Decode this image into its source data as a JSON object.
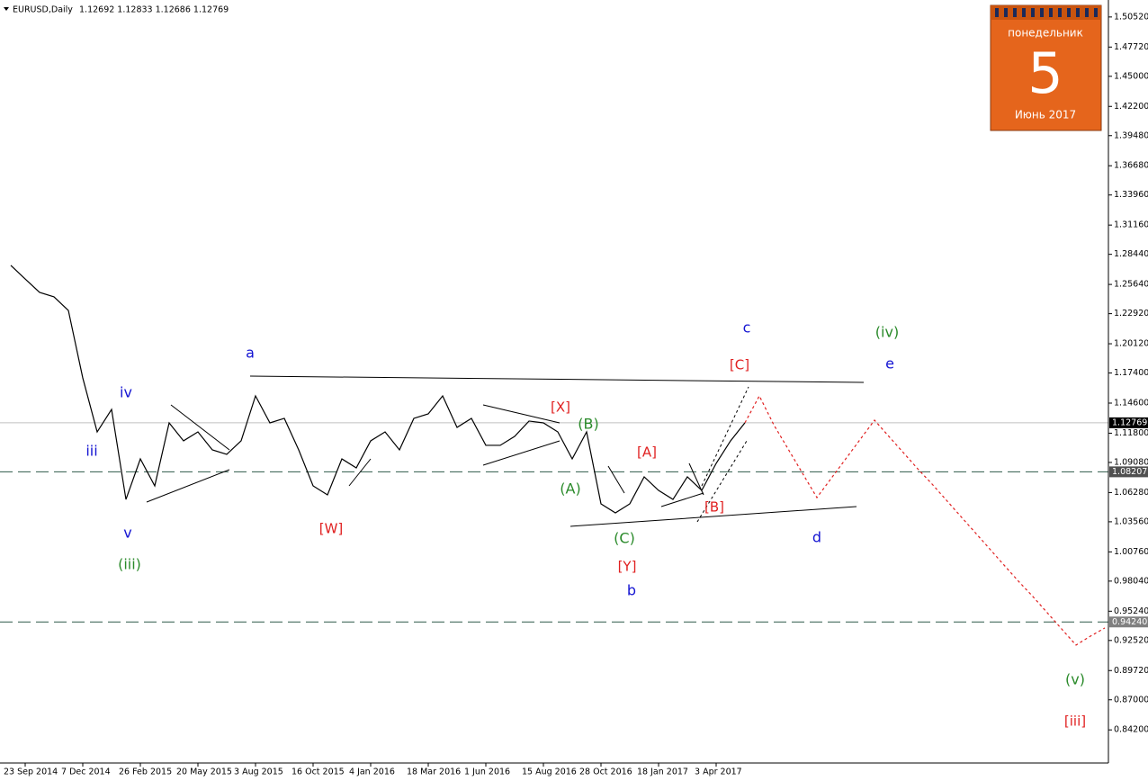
{
  "chart_data": {
    "type": "line",
    "header": {
      "symbol": "EURUSD,Daily",
      "quote": "1.12692 1.12833 1.12686 1.12769"
    },
    "calendar": {
      "weekday": "понедельник",
      "day": "5",
      "month_year": "Июнь 2017"
    },
    "categories": [
      null,
      "23 Sep 2014",
      null,
      null,
      null,
      "7 Dec 2014",
      null,
      null,
      null,
      "26 Feb 2015",
      null,
      null,
      null,
      "20 May 2015",
      null,
      null,
      null,
      "3 Aug 2015",
      null,
      null,
      null,
      "16 Oct 2015",
      null,
      null,
      null,
      "4 Jan 2016",
      null,
      null,
      null,
      "18 Mar 2016",
      null,
      null,
      null,
      "1 Jun 2016",
      null,
      null,
      null,
      "15 Aug 2016",
      null,
      null,
      null,
      "28 Oct 2016",
      null,
      null,
      null,
      "18 Jan 2017",
      null,
      null,
      null,
      "3 Apr 2017",
      null,
      null,
      null,
      null,
      null,
      null,
      null,
      null,
      null,
      null,
      null,
      null,
      null,
      null,
      null,
      null,
      null,
      null,
      null,
      null,
      null,
      null,
      null,
      null,
      null,
      null,
      null
    ],
    "series": [
      {
        "color": "#000000",
        "style": "solid",
        "values": [
          1.2741,
          1.2615,
          1.249,
          1.2448,
          1.2322,
          1.1694,
          1.1192,
          1.1401,
          1.0564,
          1.0941,
          1.069,
          1.1276,
          1.1109,
          1.1192,
          1.1025,
          1.0983,
          1.1109,
          1.1527,
          1.1276,
          1.1318,
          1.1025,
          1.069,
          1.0606,
          1.0941,
          1.0857,
          1.1109,
          1.1192,
          1.1025,
          1.1318,
          1.136,
          1.1527,
          1.1234,
          1.1318,
          1.1067,
          1.1067,
          1.115,
          1.1293,
          1.1276,
          1.1192,
          1.0941,
          1.1192,
          1.0523,
          1.0439,
          1.0523,
          1.0774,
          1.0648,
          1.0564,
          1.0774,
          1.0648,
          1.0899,
          1.1109,
          1.12769,
          null,
          null,
          null,
          null,
          null,
          null,
          null,
          null,
          null,
          null,
          null,
          null,
          null,
          null,
          null,
          null,
          null,
          null,
          null,
          null,
          null,
          null,
          null,
          null,
          null
        ]
      },
      {
        "color": "#e02020",
        "style": "dotted",
        "values": [
          null,
          null,
          null,
          null,
          null,
          null,
          null,
          null,
          null,
          null,
          null,
          null,
          null,
          null,
          null,
          null,
          null,
          null,
          null,
          null,
          null,
          null,
          null,
          null,
          null,
          null,
          null,
          null,
          null,
          null,
          null,
          null,
          null,
          null,
          null,
          null,
          null,
          null,
          null,
          null,
          null,
          null,
          null,
          null,
          null,
          null,
          null,
          null,
          null,
          null,
          null,
          1.12769,
          1.1527,
          1.1259,
          1.1033,
          1.0807,
          1.0581,
          1.0761,
          1.0941,
          1.1121,
          1.1301,
          1.115,
          1.1,
          1.0849,
          1.0707,
          1.0556,
          1.0405,
          1.0255,
          1.0104,
          0.9953,
          0.9803,
          0.9661,
          0.951,
          0.9359,
          0.9209,
          0.9292,
          0.9368
        ]
      }
    ],
    "ylim": [
      0.8112,
      1.5168
    ],
    "yticks": [
      {
        "value": 1.5052,
        "label": "1.50520"
      },
      {
        "value": 1.4772,
        "label": "1.47720"
      },
      {
        "value": 1.45,
        "label": "1.45000"
      },
      {
        "value": 1.422,
        "label": "1.42200"
      },
      {
        "value": 1.3948,
        "label": "1.39480"
      },
      {
        "value": 1.3668,
        "label": "1.36680"
      },
      {
        "value": 1.3396,
        "label": "1.33960"
      },
      {
        "value": 1.3116,
        "label": "1.31160"
      },
      {
        "value": 1.2844,
        "label": "1.28440"
      },
      {
        "value": 1.2564,
        "label": "1.25640"
      },
      {
        "value": 1.2292,
        "label": "1.22920"
      },
      {
        "value": 1.2012,
        "label": "1.20120"
      },
      {
        "value": 1.174,
        "label": "1.17400"
      },
      {
        "value": 1.146,
        "label": "1.14600"
      },
      {
        "value": 1.118,
        "label": "1.11800"
      },
      {
        "value": 1.0908,
        "label": "1.09080"
      },
      {
        "value": 1.0628,
        "label": "1.06280"
      },
      {
        "value": 1.0356,
        "label": "1.03560"
      },
      {
        "value": 1.0076,
        "label": "1.00760"
      },
      {
        "value": 0.9804,
        "label": "0.98040"
      },
      {
        "value": 0.9524,
        "label": "0.95240"
      },
      {
        "value": 0.9252,
        "label": "0.92520"
      },
      {
        "value": 0.8972,
        "label": "0.89720"
      },
      {
        "value": 0.87,
        "label": "0.87000"
      },
      {
        "value": 0.842,
        "label": "0.84200"
      }
    ],
    "levels": [
      {
        "value": 1.12769,
        "label": "1.12769",
        "style": "solid",
        "color": "#c0c0c0",
        "box": "#000000"
      },
      {
        "value": 1.08207,
        "label": "1.08207",
        "style": "dashed",
        "color": "#2f5a4a",
        "box": "#505050"
      },
      {
        "value": 0.9424,
        "label": "0.94240",
        "style": "dashed",
        "color": "#2f5a4a",
        "box": "#808080"
      }
    ],
    "annotations": [
      "iii",
      "iv",
      "v",
      "a",
      "b",
      "c",
      "d",
      "e",
      "(iii)",
      "(A)",
      "(B)",
      "(C)",
      "(iv)",
      "(v)",
      "[W]",
      "[X]",
      "[Y]",
      "[A]",
      "[B]",
      "[C]",
      "[iii]"
    ]
  }
}
